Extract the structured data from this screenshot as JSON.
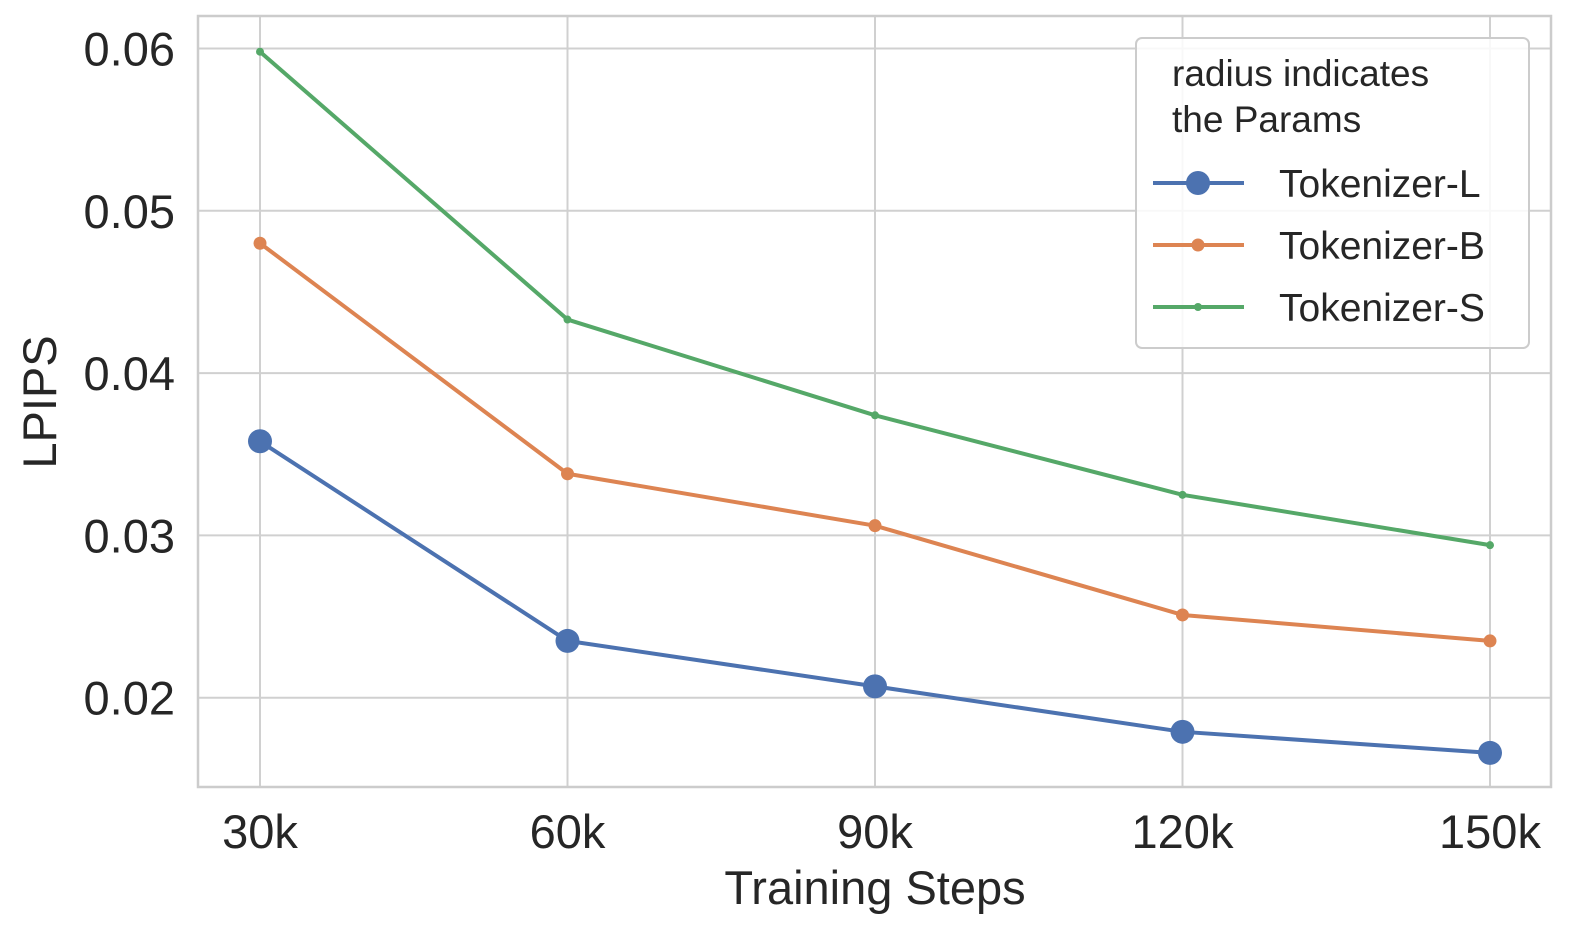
{
  "chart_data": {
    "type": "line",
    "xlabel": "Training Steps",
    "ylabel": "LPIPS",
    "categories": [
      "30k",
      "60k",
      "90k",
      "120k",
      "150k"
    ],
    "ylim": [
      0.0145,
      0.062
    ],
    "yticks": [
      0.02,
      0.03,
      0.04,
      0.05,
      0.06
    ],
    "ytick_labels": [
      "0.02",
      "0.03",
      "0.04",
      "0.05",
      "0.06"
    ],
    "grid": true,
    "legend": {
      "title": "radius indicates\nthe Params",
      "placement": "top-right"
    },
    "series": [
      {
        "name": "Tokenizer-L",
        "color": "#4c72b0",
        "marker_size": "large",
        "values": [
          0.0358,
          0.0235,
          0.0207,
          0.0179,
          0.0166
        ]
      },
      {
        "name": "Tokenizer-B",
        "color": "#dd8452",
        "marker_size": "medium",
        "values": [
          0.048,
          0.0338,
          0.0306,
          0.0251,
          0.0235
        ]
      },
      {
        "name": "Tokenizer-S",
        "color": "#55a868",
        "marker_size": "small",
        "values": [
          0.0598,
          0.0433,
          0.0374,
          0.0325,
          0.0294
        ]
      }
    ]
  }
}
